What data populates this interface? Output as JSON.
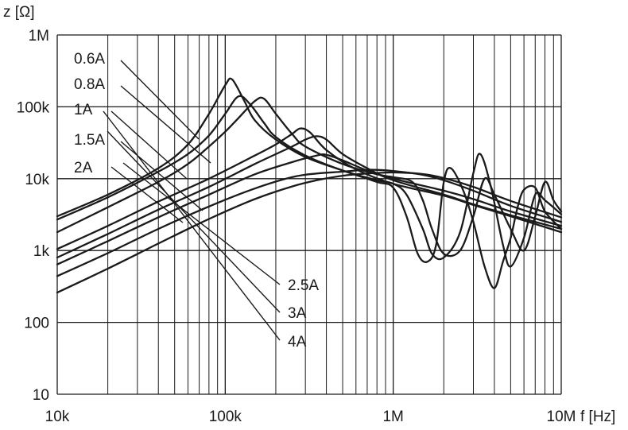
{
  "chart_data": {
    "type": "line",
    "title": "",
    "xlabel": "f [Hz]",
    "ylabel": "z [Ω]",
    "x_scale": "log",
    "y_scale": "log",
    "xlim": [
      10000,
      10000000
    ],
    "ylim": [
      10,
      1000000
    ],
    "grid": true,
    "x_ticks": [
      {
        "value": 10000,
        "label": "10k"
      },
      {
        "value": 100000,
        "label": "100k"
      },
      {
        "value": 1000000,
        "label": "1M"
      },
      {
        "value": 10000000,
        "label": "10M"
      }
    ],
    "y_ticks": [
      {
        "value": 10,
        "label": "10"
      },
      {
        "value": 100,
        "label": "100"
      },
      {
        "value": 1000,
        "label": "1k"
      },
      {
        "value": 10000,
        "label": "10k"
      },
      {
        "value": 100000,
        "label": "100k"
      },
      {
        "value": 1000000,
        "label": "1M"
      }
    ],
    "series": [
      {
        "name": "0.6A",
        "points": [
          [
            10000,
            3000
          ],
          [
            20000,
            6000
          ],
          [
            40000,
            14000
          ],
          [
            60000,
            30000
          ],
          [
            80000,
            80000
          ],
          [
            100000,
            200000
          ],
          [
            110000,
            240000
          ],
          [
            130000,
            120000
          ],
          [
            150000,
            65000
          ],
          [
            200000,
            35000
          ],
          [
            300000,
            20000
          ],
          [
            500000,
            13000
          ],
          [
            800000,
            9000
          ],
          [
            1000000,
            7500
          ],
          [
            1200000,
            3000
          ],
          [
            1400000,
            900
          ],
          [
            1600000,
            700
          ],
          [
            1800000,
            1200
          ],
          [
            2000000,
            9000
          ],
          [
            2200000,
            14000
          ],
          [
            2600000,
            7000
          ],
          [
            3000000,
            2500
          ],
          [
            3500000,
            600
          ],
          [
            4000000,
            300
          ],
          [
            4500000,
            700
          ],
          [
            5000000,
            1500
          ],
          [
            5500000,
            4000
          ],
          [
            6000000,
            7000
          ],
          [
            7000000,
            7500
          ],
          [
            8000000,
            3500
          ],
          [
            10000000,
            2000
          ]
        ]
      },
      {
        "name": "0.8A",
        "points": [
          [
            10000,
            2700
          ],
          [
            20000,
            5500
          ],
          [
            40000,
            12500
          ],
          [
            60000,
            22000
          ],
          [
            80000,
            40000
          ],
          [
            100000,
            80000
          ],
          [
            120000,
            140000
          ],
          [
            140000,
            110000
          ],
          [
            170000,
            60000
          ],
          [
            200000,
            38000
          ],
          [
            300000,
            21000
          ],
          [
            500000,
            13000
          ],
          [
            800000,
            9500
          ],
          [
            1000000,
            8500
          ],
          [
            1200000,
            6000
          ],
          [
            1500000,
            2000
          ],
          [
            1700000,
            900
          ],
          [
            2000000,
            800
          ],
          [
            2500000,
            1800
          ],
          [
            3000000,
            12000
          ],
          [
            3300000,
            22000
          ],
          [
            3800000,
            8000
          ],
          [
            4500000,
            1200
          ],
          [
            5000000,
            600
          ],
          [
            6000000,
            1500
          ],
          [
            7000000,
            6000
          ],
          [
            8000000,
            5000
          ],
          [
            10000000,
            3200
          ]
        ]
      },
      {
        "name": "1A",
        "points": [
          [
            10000,
            1800
          ],
          [
            20000,
            4000
          ],
          [
            40000,
            9000
          ],
          [
            60000,
            16000
          ],
          [
            80000,
            28000
          ],
          [
            100000,
            45000
          ],
          [
            120000,
            70000
          ],
          [
            150000,
            120000
          ],
          [
            170000,
            130000
          ],
          [
            200000,
            80000
          ],
          [
            250000,
            42000
          ],
          [
            300000,
            28000
          ],
          [
            500000,
            16000
          ],
          [
            800000,
            11500
          ],
          [
            1000000,
            10500
          ],
          [
            1300000,
            9000
          ],
          [
            1500000,
            5000
          ],
          [
            1700000,
            2000
          ],
          [
            2000000,
            900
          ],
          [
            2500000,
            1000
          ],
          [
            3000000,
            3000
          ],
          [
            3500000,
            10000
          ],
          [
            4000000,
            6000
          ],
          [
            5000000,
            2000
          ],
          [
            6000000,
            1000
          ],
          [
            7000000,
            3000
          ],
          [
            8000000,
            9000
          ],
          [
            9000000,
            5000
          ],
          [
            10000000,
            3500
          ]
        ]
      },
      {
        "name": "1.5A",
        "points": [
          [
            10000,
            1050
          ],
          [
            20000,
            2200
          ],
          [
            40000,
            4800
          ],
          [
            80000,
            10000
          ],
          [
            150000,
            21000
          ],
          [
            200000,
            30000
          ],
          [
            250000,
            42000
          ],
          [
            280000,
            50000
          ],
          [
            320000,
            44000
          ],
          [
            400000,
            25000
          ],
          [
            600000,
            13500
          ],
          [
            1000000,
            8500
          ],
          [
            2000000,
            5800
          ],
          [
            3000000,
            4300
          ],
          [
            5000000,
            3000
          ],
          [
            10000000,
            1800
          ]
        ]
      },
      {
        "name": "2A",
        "points": [
          [
            10000,
            800
          ],
          [
            20000,
            1700
          ],
          [
            40000,
            3700
          ],
          [
            80000,
            7700
          ],
          [
            150000,
            16000
          ],
          [
            250000,
            28000
          ],
          [
            300000,
            35000
          ],
          [
            350000,
            39000
          ],
          [
            400000,
            35000
          ],
          [
            500000,
            22000
          ],
          [
            700000,
            14000
          ],
          [
            1000000,
            9500
          ],
          [
            2000000,
            6000
          ],
          [
            3000000,
            4400
          ],
          [
            5000000,
            3100
          ],
          [
            10000000,
            2000
          ]
        ]
      },
      {
        "name": "2.5A",
        "points": [
          [
            10000,
            640
          ],
          [
            20000,
            1350
          ],
          [
            40000,
            2900
          ],
          [
            80000,
            6000
          ],
          [
            150000,
            11500
          ],
          [
            250000,
            17000
          ],
          [
            350000,
            21000
          ],
          [
            400000,
            21500
          ],
          [
            500000,
            18000
          ],
          [
            700000,
            13000
          ],
          [
            1000000,
            10000
          ],
          [
            2000000,
            6800
          ],
          [
            3000000,
            5200
          ],
          [
            5000000,
            3500
          ],
          [
            10000000,
            2200
          ]
        ]
      },
      {
        "name": "3A",
        "points": [
          [
            10000,
            440
          ],
          [
            20000,
            920
          ],
          [
            40000,
            2000
          ],
          [
            80000,
            4100
          ],
          [
            150000,
            7300
          ],
          [
            250000,
            10500
          ],
          [
            350000,
            11800
          ],
          [
            500000,
            12500
          ],
          [
            700000,
            13300
          ],
          [
            1000000,
            12800
          ],
          [
            1500000,
            11300
          ],
          [
            2000000,
            9500
          ],
          [
            3000000,
            6800
          ],
          [
            5000000,
            4200
          ],
          [
            10000000,
            2500
          ]
        ]
      },
      {
        "name": "4A",
        "points": [
          [
            10000,
            260
          ],
          [
            20000,
            560
          ],
          [
            40000,
            1250
          ],
          [
            80000,
            2750
          ],
          [
            150000,
            5200
          ],
          [
            250000,
            7800
          ],
          [
            350000,
            9500
          ],
          [
            500000,
            11000
          ],
          [
            700000,
            11800
          ],
          [
            1000000,
            12200
          ],
          [
            1500000,
            11600
          ],
          [
            2000000,
            10200
          ],
          [
            3000000,
            7700
          ],
          [
            5000000,
            4900
          ],
          [
            10000000,
            2900
          ]
        ]
      }
    ]
  }
}
